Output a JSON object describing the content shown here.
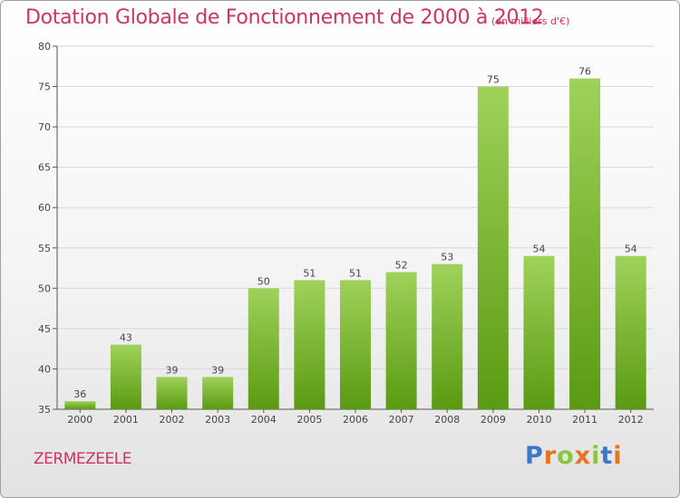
{
  "title": "Dotation Globale de Fonctionnement de 2000 à 2012",
  "unit_note": "(en milliers d'€)",
  "commune": "ZERMEZEELE",
  "logo": {
    "letters": [
      "P",
      "r",
      "o",
      "x",
      "i",
      "t",
      "i"
    ],
    "colors": [
      "#3a78c8",
      "#e8731c",
      "#8cc63f",
      "#e8731c",
      "#8cc63f",
      "#3a78c8",
      "#e8731c"
    ]
  },
  "colors": {
    "bar_top": "#9fd25a",
    "bar_bottom": "#5a9a12",
    "title": "#cc3366",
    "grid": "#d8d8d8"
  },
  "chart_data": {
    "type": "bar",
    "categories": [
      "2000",
      "2001",
      "2002",
      "2003",
      "2004",
      "2005",
      "2006",
      "2007",
      "2008",
      "2009",
      "2010",
      "2011",
      "2012"
    ],
    "values": [
      36,
      43,
      39,
      39,
      50,
      51,
      51,
      52,
      53,
      75,
      54,
      76,
      54
    ],
    "ylim": [
      35,
      80
    ],
    "yticks": [
      35,
      40,
      45,
      50,
      55,
      60,
      65,
      70,
      75,
      80
    ],
    "grid": true,
    "data_labels": true
  }
}
